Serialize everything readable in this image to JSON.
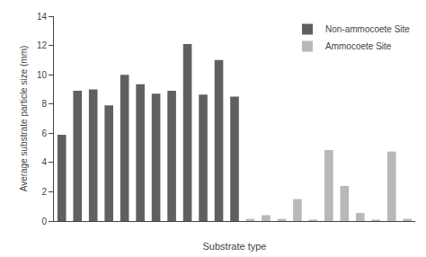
{
  "chart_data": {
    "type": "bar",
    "xlabel": "Substrate type",
    "ylabel": "Average substrate particle size (mm)",
    "categories": [
      null,
      null,
      null,
      null,
      null,
      null,
      null,
      null,
      null,
      null,
      null,
      null,
      null,
      null,
      null,
      null,
      null,
      null,
      null,
      null,
      null,
      null,
      null
    ],
    "series": [
      {
        "name": "Non-ammocoete Site",
        "color": "#606060",
        "values": [
          5.9,
          8.9,
          9.0,
          7.9,
          10.0,
          9.35,
          8.7,
          8.9,
          12.1,
          8.65,
          11.0,
          8.5,
          0.0,
          0.0,
          0.0,
          0.0,
          0.0,
          0.0,
          0.0,
          0.0,
          0.0,
          0.0,
          0.0
        ]
      },
      {
        "name": "Ammocoete Site",
        "color": "#b8b8b8",
        "values": [
          0.0,
          0.0,
          0.0,
          0.0,
          0.0,
          0.0,
          0.0,
          0.0,
          0.0,
          0.0,
          0.0,
          0.0,
          0.15,
          0.4,
          0.15,
          1.5,
          0.1,
          4.85,
          2.4,
          0.55,
          0.1,
          4.75,
          0.15
        ]
      }
    ],
    "ylim": [
      0,
      14
    ],
    "yticks": [
      0,
      2,
      4,
      6,
      8,
      10,
      12,
      14
    ],
    "grid": false,
    "legend": "upper right",
    "stacked": false,
    "tick_labels": "y"
  }
}
